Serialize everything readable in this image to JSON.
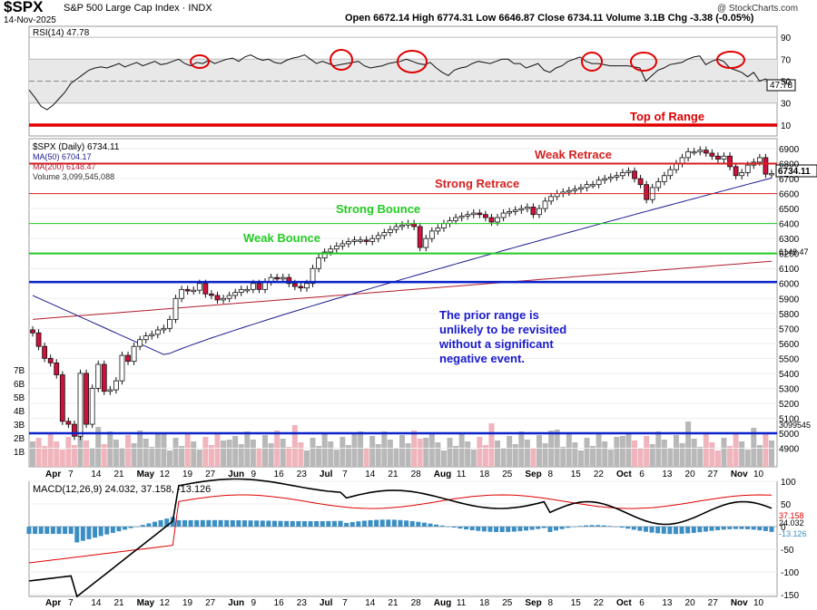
{
  "header": {
    "symbol": "$SPX",
    "name": "S&P 500 Large Cap Index",
    "exchange": "INDX",
    "date": "14-Nov-2025",
    "ohlc": "Open 6672.14  High 6774.31  Low 6646.87  Close 6734.11  Volume 3.1B  Chg -3.38 (-0.05%)",
    "copyright": "@ StockCharts.com"
  },
  "colors": {
    "up": "#ffffff",
    "down": "#d0103a",
    "ma50": "#1b1b8f",
    "ma200": "#b01c2e",
    "rsi_band_fill": "#e8e8e8",
    "top_range": "#e00000",
    "red_lines": "#d62020",
    "green_lines": "#22cc22",
    "blue_lines": "#0a22cc",
    "macd_line": "#000000",
    "signal_line": "#e00000",
    "histogram": "#3b8ec4",
    "note_text": "#1a1acc"
  },
  "chart_data": [
    {
      "type": "line",
      "panel": "rsi",
      "label": "RSI(14) 47.78",
      "last_value": "47.78",
      "y_ticks": [
        90,
        70,
        50,
        30,
        10
      ],
      "ylim": [
        0,
        100
      ],
      "overbought": 70,
      "oversold": 30,
      "series": [
        {
          "name": "RSI(14)",
          "values": [
            42,
            35,
            27,
            24,
            28,
            34,
            40,
            48,
            52,
            56,
            60,
            62,
            63,
            62,
            64,
            66,
            63,
            65,
            67,
            64,
            66,
            68,
            65,
            66,
            68,
            70,
            66,
            64,
            67,
            66,
            69,
            66,
            68,
            70,
            71,
            68,
            72,
            74,
            71,
            69,
            70,
            67,
            66,
            69,
            71,
            72,
            74,
            70,
            66,
            68,
            66,
            64,
            65,
            66,
            67,
            68,
            64,
            62,
            63,
            64,
            66,
            67,
            68,
            70,
            68,
            66,
            65,
            67,
            62,
            58,
            55,
            60,
            62,
            63,
            66,
            68,
            67,
            66,
            68,
            70,
            70,
            66,
            66,
            62,
            64,
            66,
            60,
            58,
            62,
            64,
            68,
            70,
            72,
            68,
            66,
            66,
            65,
            64,
            64,
            64,
            64,
            63,
            62,
            50,
            55,
            60,
            62,
            65,
            66,
            67,
            70,
            72,
            73,
            65,
            68,
            70,
            68,
            62,
            60,
            58,
            54,
            58,
            50,
            52,
            48
          ]
        }
      ]
    },
    {
      "type": "candlestick",
      "panel": "price",
      "label": "$SPX (Daily) 6734.11",
      "ylim": [
        4800,
        7000
      ],
      "y_ticks": [
        6900,
        6800,
        6700,
        6600,
        6500,
        6400,
        6300,
        6200,
        6100,
        6000,
        5900,
        5800,
        5700,
        5600,
        5500,
        5400,
        5300,
        5200,
        5100,
        5000,
        4900
      ],
      "x_labels": [
        "Apr",
        "7",
        "14",
        "21",
        "May",
        "12",
        "19",
        "27",
        "Jun",
        "9",
        "16",
        "23",
        "Jul",
        "7",
        "14",
        "21",
        "28",
        "Aug",
        "11",
        "18",
        "25",
        "Sep",
        "8",
        "15",
        "22",
        "Oct",
        "6",
        "13",
        "20",
        "27",
        "Nov",
        "10"
      ],
      "closes": [
        5670,
        5580,
        5500,
        5470,
        5390,
        5080,
        5060,
        4980,
        5400,
        5060,
        5300,
        5460,
        5280,
        5290,
        5350,
        5520,
        5480,
        5580,
        5625,
        5650,
        5660,
        5690,
        5700,
        5760,
        5900,
        5960,
        5950,
        5955,
        6000,
        5930,
        5920,
        5890,
        5900,
        5920,
        5940,
        5960,
        5960,
        6000,
        5960,
        6010,
        6040,
        6030,
        6040,
        6000,
        5980,
        5970,
        6000,
        6100,
        6170,
        6210,
        6230,
        6250,
        6265,
        6280,
        6290,
        6290,
        6280,
        6300,
        6320,
        6340,
        6360,
        6380,
        6390,
        6400,
        6380,
        6240,
        6300,
        6350,
        6370,
        6400,
        6420,
        6440,
        6450,
        6460,
        6470,
        6460,
        6440,
        6410,
        6440,
        6470,
        6480,
        6490,
        6500,
        6510,
        6460,
        6500,
        6550,
        6580,
        6600,
        6610,
        6620,
        6630,
        6640,
        6660,
        6660,
        6690,
        6700,
        6710,
        6720,
        6740,
        6750,
        6700,
        6660,
        6560,
        6640,
        6680,
        6720,
        6760,
        6800,
        6840,
        6880,
        6880,
        6890,
        6870,
        6850,
        6830,
        6850,
        6780,
        6720,
        6740,
        6790,
        6810,
        6840,
        6730,
        6734
      ],
      "last_value": "6734.11",
      "ma50": {
        "label": "MA(50) 6704.17",
        "last": "6704.17"
      },
      "ma200": {
        "label": "MA(200) 6148.47",
        "last": "6148.47"
      },
      "volume": {
        "label": "Volume 3,099,545,088",
        "last": "3099545"
      },
      "vol_ticks": [
        "7B",
        "6B",
        "5B",
        "4B",
        "3B",
        "2B",
        "1B"
      ],
      "reference_lines": [
        {
          "label": "Top of Range",
          "value": "top"
        },
        {
          "label": "Weak Retrace",
          "value": 6800
        },
        {
          "label": "Strong Retrace",
          "value": 6600
        },
        {
          "label": "Strong Bounce",
          "value": 6400
        },
        {
          "label": "Weak Bounce",
          "value": 6200
        },
        {
          "label": "",
          "value": 6010
        },
        {
          "label": "",
          "value": 5000
        }
      ],
      "annotation": "The prior range is unlikely to be revisited without a significant negative event."
    },
    {
      "type": "line",
      "panel": "macd",
      "label": "MACD(12,26,9) 24.032, 37.158, -13.126",
      "macd": "24.032",
      "signal": "37.158",
      "histogram": "-13.126",
      "ylim": [
        -150,
        150
      ],
      "y_ticks": [
        100,
        50,
        0,
        -50,
        -100,
        -150
      ]
    }
  ]
}
